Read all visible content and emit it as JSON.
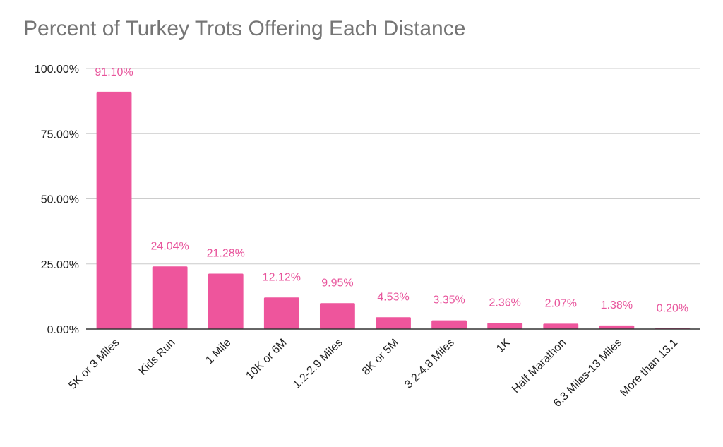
{
  "chart_data": {
    "type": "bar",
    "title": "Percent of Turkey Trots Offering Each Distance",
    "xlabel": "",
    "ylabel": "",
    "ylim": [
      0,
      100
    ],
    "yticks": [
      "0.00%",
      "25.00%",
      "50.00%",
      "75.00%",
      "100.00%"
    ],
    "ytick_values": [
      0,
      25,
      50,
      75,
      100
    ],
    "categories": [
      "5K or 3 Miles",
      "Kids Run",
      "1 Mile",
      "10K or 6M",
      "1.2-2.9 Miles",
      "8K or 5M",
      "3.2-4.8 Miles",
      "1K",
      "Half Marathon",
      "6.3 Miles-13 Miles",
      "More than 13.1"
    ],
    "values": [
      91.1,
      24.04,
      21.28,
      12.12,
      9.95,
      4.53,
      3.35,
      2.36,
      2.07,
      1.38,
      0.2
    ],
    "data_labels": [
      "91.10%",
      "24.04%",
      "21.28%",
      "12.12%",
      "9.95%",
      "4.53%",
      "3.35%",
      "2.36%",
      "2.07%",
      "1.38%",
      "0.20%"
    ],
    "grid": true,
    "legend": "none",
    "bar_color": "#ee559c",
    "label_color": "#e8559c",
    "axis_color": "#333333",
    "grid_color": "#cccccc"
  }
}
